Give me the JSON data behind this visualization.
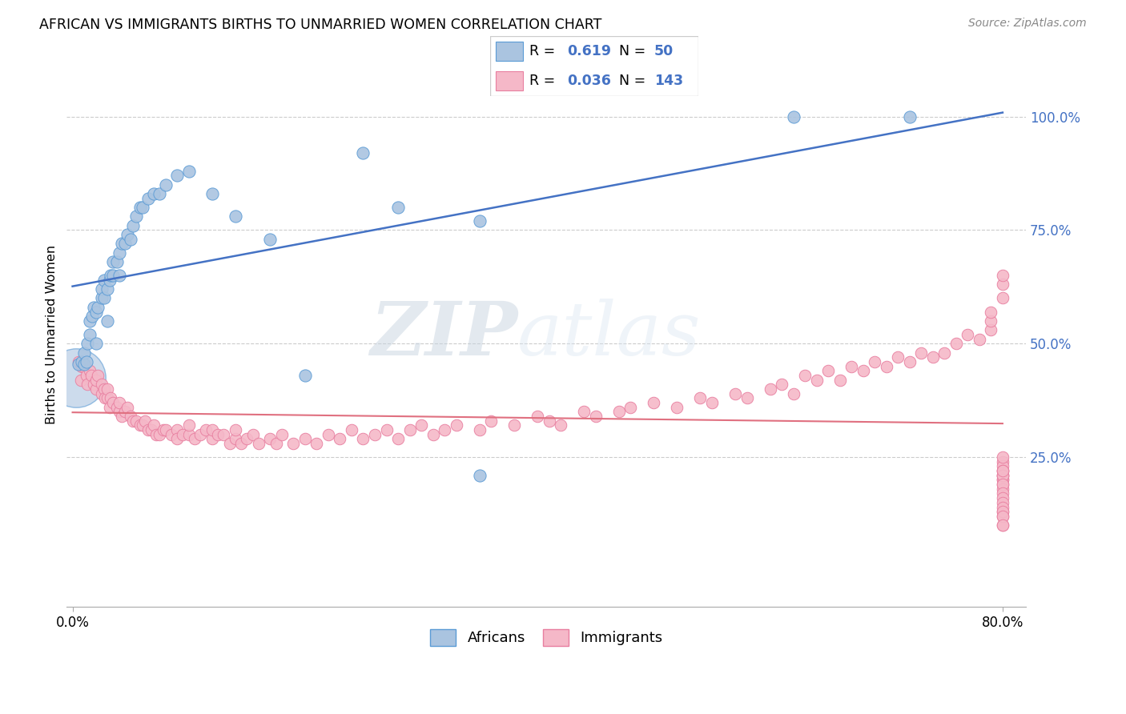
{
  "title": "AFRICAN VS IMMIGRANTS BIRTHS TO UNMARRIED WOMEN CORRELATION CHART",
  "source": "Source: ZipAtlas.com",
  "ylabel": "Births to Unmarried Women",
  "watermark_zip": "ZIP",
  "watermark_atlas": "atlas",
  "xlim": [
    0.0,
    0.8
  ],
  "ylim": [
    -0.08,
    1.12
  ],
  "blue_color": "#aac4e0",
  "blue_edge": "#5b9bd5",
  "pink_color": "#f5b8c8",
  "pink_edge": "#e87fa0",
  "blue_line_color": "#4472c4",
  "pink_line_color": "#e07080",
  "africans_x": [
    0.005,
    0.008,
    0.01,
    0.01,
    0.012,
    0.013,
    0.015,
    0.015,
    0.017,
    0.018,
    0.02,
    0.02,
    0.022,
    0.025,
    0.025,
    0.027,
    0.027,
    0.03,
    0.03,
    0.032,
    0.033,
    0.035,
    0.035,
    0.038,
    0.04,
    0.04,
    0.042,
    0.045,
    0.047,
    0.05,
    0.052,
    0.055,
    0.058,
    0.06,
    0.065,
    0.07,
    0.075,
    0.08,
    0.09,
    0.1,
    0.12,
    0.14,
    0.17,
    0.2,
    0.25,
    0.28,
    0.35,
    0.35,
    0.62,
    0.72
  ],
  "africans_y": [
    0.455,
    0.46,
    0.455,
    0.48,
    0.46,
    0.5,
    0.52,
    0.55,
    0.56,
    0.58,
    0.5,
    0.57,
    0.58,
    0.6,
    0.62,
    0.6,
    0.64,
    0.55,
    0.62,
    0.64,
    0.65,
    0.65,
    0.68,
    0.68,
    0.65,
    0.7,
    0.72,
    0.72,
    0.74,
    0.73,
    0.76,
    0.78,
    0.8,
    0.8,
    0.82,
    0.83,
    0.83,
    0.85,
    0.87,
    0.88,
    0.83,
    0.78,
    0.73,
    0.43,
    0.92,
    0.8,
    0.21,
    0.77,
    1.0,
    1.0
  ],
  "immigrants_x": [
    0.005,
    0.007,
    0.008,
    0.01,
    0.012,
    0.013,
    0.015,
    0.016,
    0.018,
    0.02,
    0.02,
    0.022,
    0.025,
    0.025,
    0.027,
    0.028,
    0.03,
    0.03,
    0.032,
    0.033,
    0.035,
    0.038,
    0.04,
    0.04,
    0.042,
    0.045,
    0.047,
    0.05,
    0.052,
    0.055,
    0.058,
    0.06,
    0.062,
    0.065,
    0.068,
    0.07,
    0.072,
    0.075,
    0.078,
    0.08,
    0.085,
    0.09,
    0.09,
    0.095,
    0.1,
    0.1,
    0.105,
    0.11,
    0.115,
    0.12,
    0.12,
    0.125,
    0.13,
    0.135,
    0.14,
    0.14,
    0.145,
    0.15,
    0.155,
    0.16,
    0.17,
    0.175,
    0.18,
    0.19,
    0.2,
    0.21,
    0.22,
    0.23,
    0.24,
    0.25,
    0.26,
    0.27,
    0.28,
    0.29,
    0.3,
    0.31,
    0.32,
    0.33,
    0.35,
    0.36,
    0.38,
    0.4,
    0.41,
    0.42,
    0.44,
    0.45,
    0.47,
    0.48,
    0.5,
    0.52,
    0.54,
    0.55,
    0.57,
    0.58,
    0.6,
    0.61,
    0.62,
    0.63,
    0.64,
    0.65,
    0.66,
    0.67,
    0.68,
    0.69,
    0.7,
    0.71,
    0.72,
    0.73,
    0.74,
    0.75,
    0.76,
    0.77,
    0.78,
    0.79,
    0.79,
    0.79,
    0.8,
    0.8,
    0.8,
    0.8,
    0.8,
    0.8,
    0.8,
    0.8,
    0.8,
    0.8,
    0.8,
    0.8,
    0.8,
    0.8,
    0.8,
    0.8,
    0.8,
    0.8,
    0.8,
    0.8,
    0.8,
    0.8,
    0.8,
    0.8,
    0.8,
    0.8,
    0.8
  ],
  "immigrants_y": [
    0.46,
    0.42,
    0.45,
    0.45,
    0.43,
    0.41,
    0.44,
    0.43,
    0.41,
    0.4,
    0.42,
    0.43,
    0.39,
    0.41,
    0.4,
    0.38,
    0.38,
    0.4,
    0.36,
    0.38,
    0.37,
    0.36,
    0.35,
    0.37,
    0.34,
    0.35,
    0.36,
    0.34,
    0.33,
    0.33,
    0.32,
    0.32,
    0.33,
    0.31,
    0.31,
    0.32,
    0.3,
    0.3,
    0.31,
    0.31,
    0.3,
    0.31,
    0.29,
    0.3,
    0.3,
    0.32,
    0.29,
    0.3,
    0.31,
    0.29,
    0.31,
    0.3,
    0.3,
    0.28,
    0.29,
    0.31,
    0.28,
    0.29,
    0.3,
    0.28,
    0.29,
    0.28,
    0.3,
    0.28,
    0.29,
    0.28,
    0.3,
    0.29,
    0.31,
    0.29,
    0.3,
    0.31,
    0.29,
    0.31,
    0.32,
    0.3,
    0.31,
    0.32,
    0.31,
    0.33,
    0.32,
    0.34,
    0.33,
    0.32,
    0.35,
    0.34,
    0.35,
    0.36,
    0.37,
    0.36,
    0.38,
    0.37,
    0.39,
    0.38,
    0.4,
    0.41,
    0.39,
    0.43,
    0.42,
    0.44,
    0.42,
    0.45,
    0.44,
    0.46,
    0.45,
    0.47,
    0.46,
    0.48,
    0.47,
    0.48,
    0.5,
    0.52,
    0.51,
    0.53,
    0.55,
    0.57,
    0.6,
    0.63,
    0.65,
    0.22,
    0.24,
    0.2,
    0.23,
    0.25,
    0.21,
    0.22,
    0.2,
    0.21,
    0.19,
    0.18,
    0.21,
    0.22,
    0.19,
    0.17,
    0.16,
    0.13,
    0.15,
    0.14,
    0.12,
    0.1,
    0.13,
    0.12,
    0.1
  ]
}
